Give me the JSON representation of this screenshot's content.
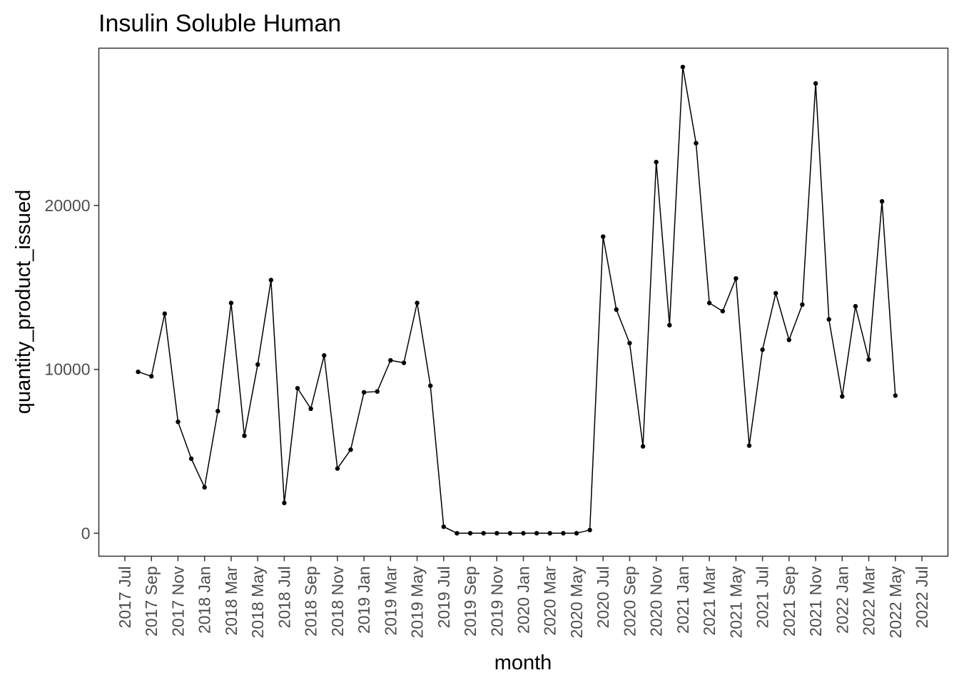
{
  "chart_data": {
    "type": "line",
    "title": "Insulin Soluble Human",
    "xlabel": "month",
    "ylabel": "quantity_product_issued",
    "x_tick_labels": [
      "2017 Jul",
      "2017 Sep",
      "2017 Nov",
      "2018 Jan",
      "2018 Mar",
      "2018 May",
      "2018 Jul",
      "2018 Sep",
      "2018 Nov",
      "2019 Jan",
      "2019 Mar",
      "2019 May",
      "2019 Jul",
      "2019 Sep",
      "2019 Nov",
      "2020 Jan",
      "2020 Mar",
      "2020 May",
      "2020 Jul",
      "2020 Sep",
      "2020 Nov",
      "2021 Jan",
      "2021 Mar",
      "2021 May",
      "2021 Jul",
      "2021 Sep",
      "2021 Nov",
      "2022 Jan",
      "2022 Mar",
      "2022 May",
      "2022 Jul"
    ],
    "y_ticks": [
      0,
      10000,
      20000
    ],
    "y_tick_labels": [
      "0",
      "10000",
      "20000"
    ],
    "ylim": [
      -1400,
      29600
    ],
    "xlim": [
      "2017-07-01",
      "2022-07-01"
    ],
    "grid": false,
    "x": [
      "2017-08",
      "2017-09",
      "2017-10",
      "2017-11",
      "2017-12",
      "2018-01",
      "2018-02",
      "2018-03",
      "2018-04",
      "2018-05",
      "2018-06",
      "2018-07",
      "2018-08",
      "2018-09",
      "2018-10",
      "2018-11",
      "2018-12",
      "2019-01",
      "2019-02",
      "2019-03",
      "2019-04",
      "2019-05",
      "2019-06",
      "2019-07",
      "2019-08",
      "2019-09",
      "2019-10",
      "2019-11",
      "2019-12",
      "2020-01",
      "2020-02",
      "2020-03",
      "2020-04",
      "2020-05",
      "2020-06",
      "2020-07",
      "2020-08",
      "2020-09",
      "2020-10",
      "2020-11",
      "2020-12",
      "2021-01",
      "2021-02",
      "2021-03",
      "2021-04",
      "2021-05",
      "2021-06",
      "2021-07",
      "2021-08",
      "2021-09",
      "2021-10",
      "2021-11",
      "2021-12",
      "2022-01",
      "2022-02",
      "2022-03",
      "2022-04",
      "2022-05",
      "2022-06"
    ],
    "values": [
      9850,
      9580,
      13400,
      6800,
      4550,
      2800,
      7450,
      14050,
      5950,
      10300,
      15450,
      1850,
      8850,
      7600,
      10850,
      3950,
      5100,
      8600,
      8650,
      10550,
      10400,
      14050,
      9000,
      400,
      0,
      0,
      0,
      0,
      0,
      0,
      0,
      0,
      0,
      0,
      200,
      18100,
      13650,
      11600,
      5300,
      22650,
      12700,
      28450,
      23800,
      14050,
      13550,
      15550,
      5350,
      11200,
      14650,
      11800,
      13950,
      27450,
      13050,
      8350,
      13850,
      10600,
      20250,
      8400,
      null
    ],
    "point_color": "#000000",
    "line_color": "#000000"
  }
}
